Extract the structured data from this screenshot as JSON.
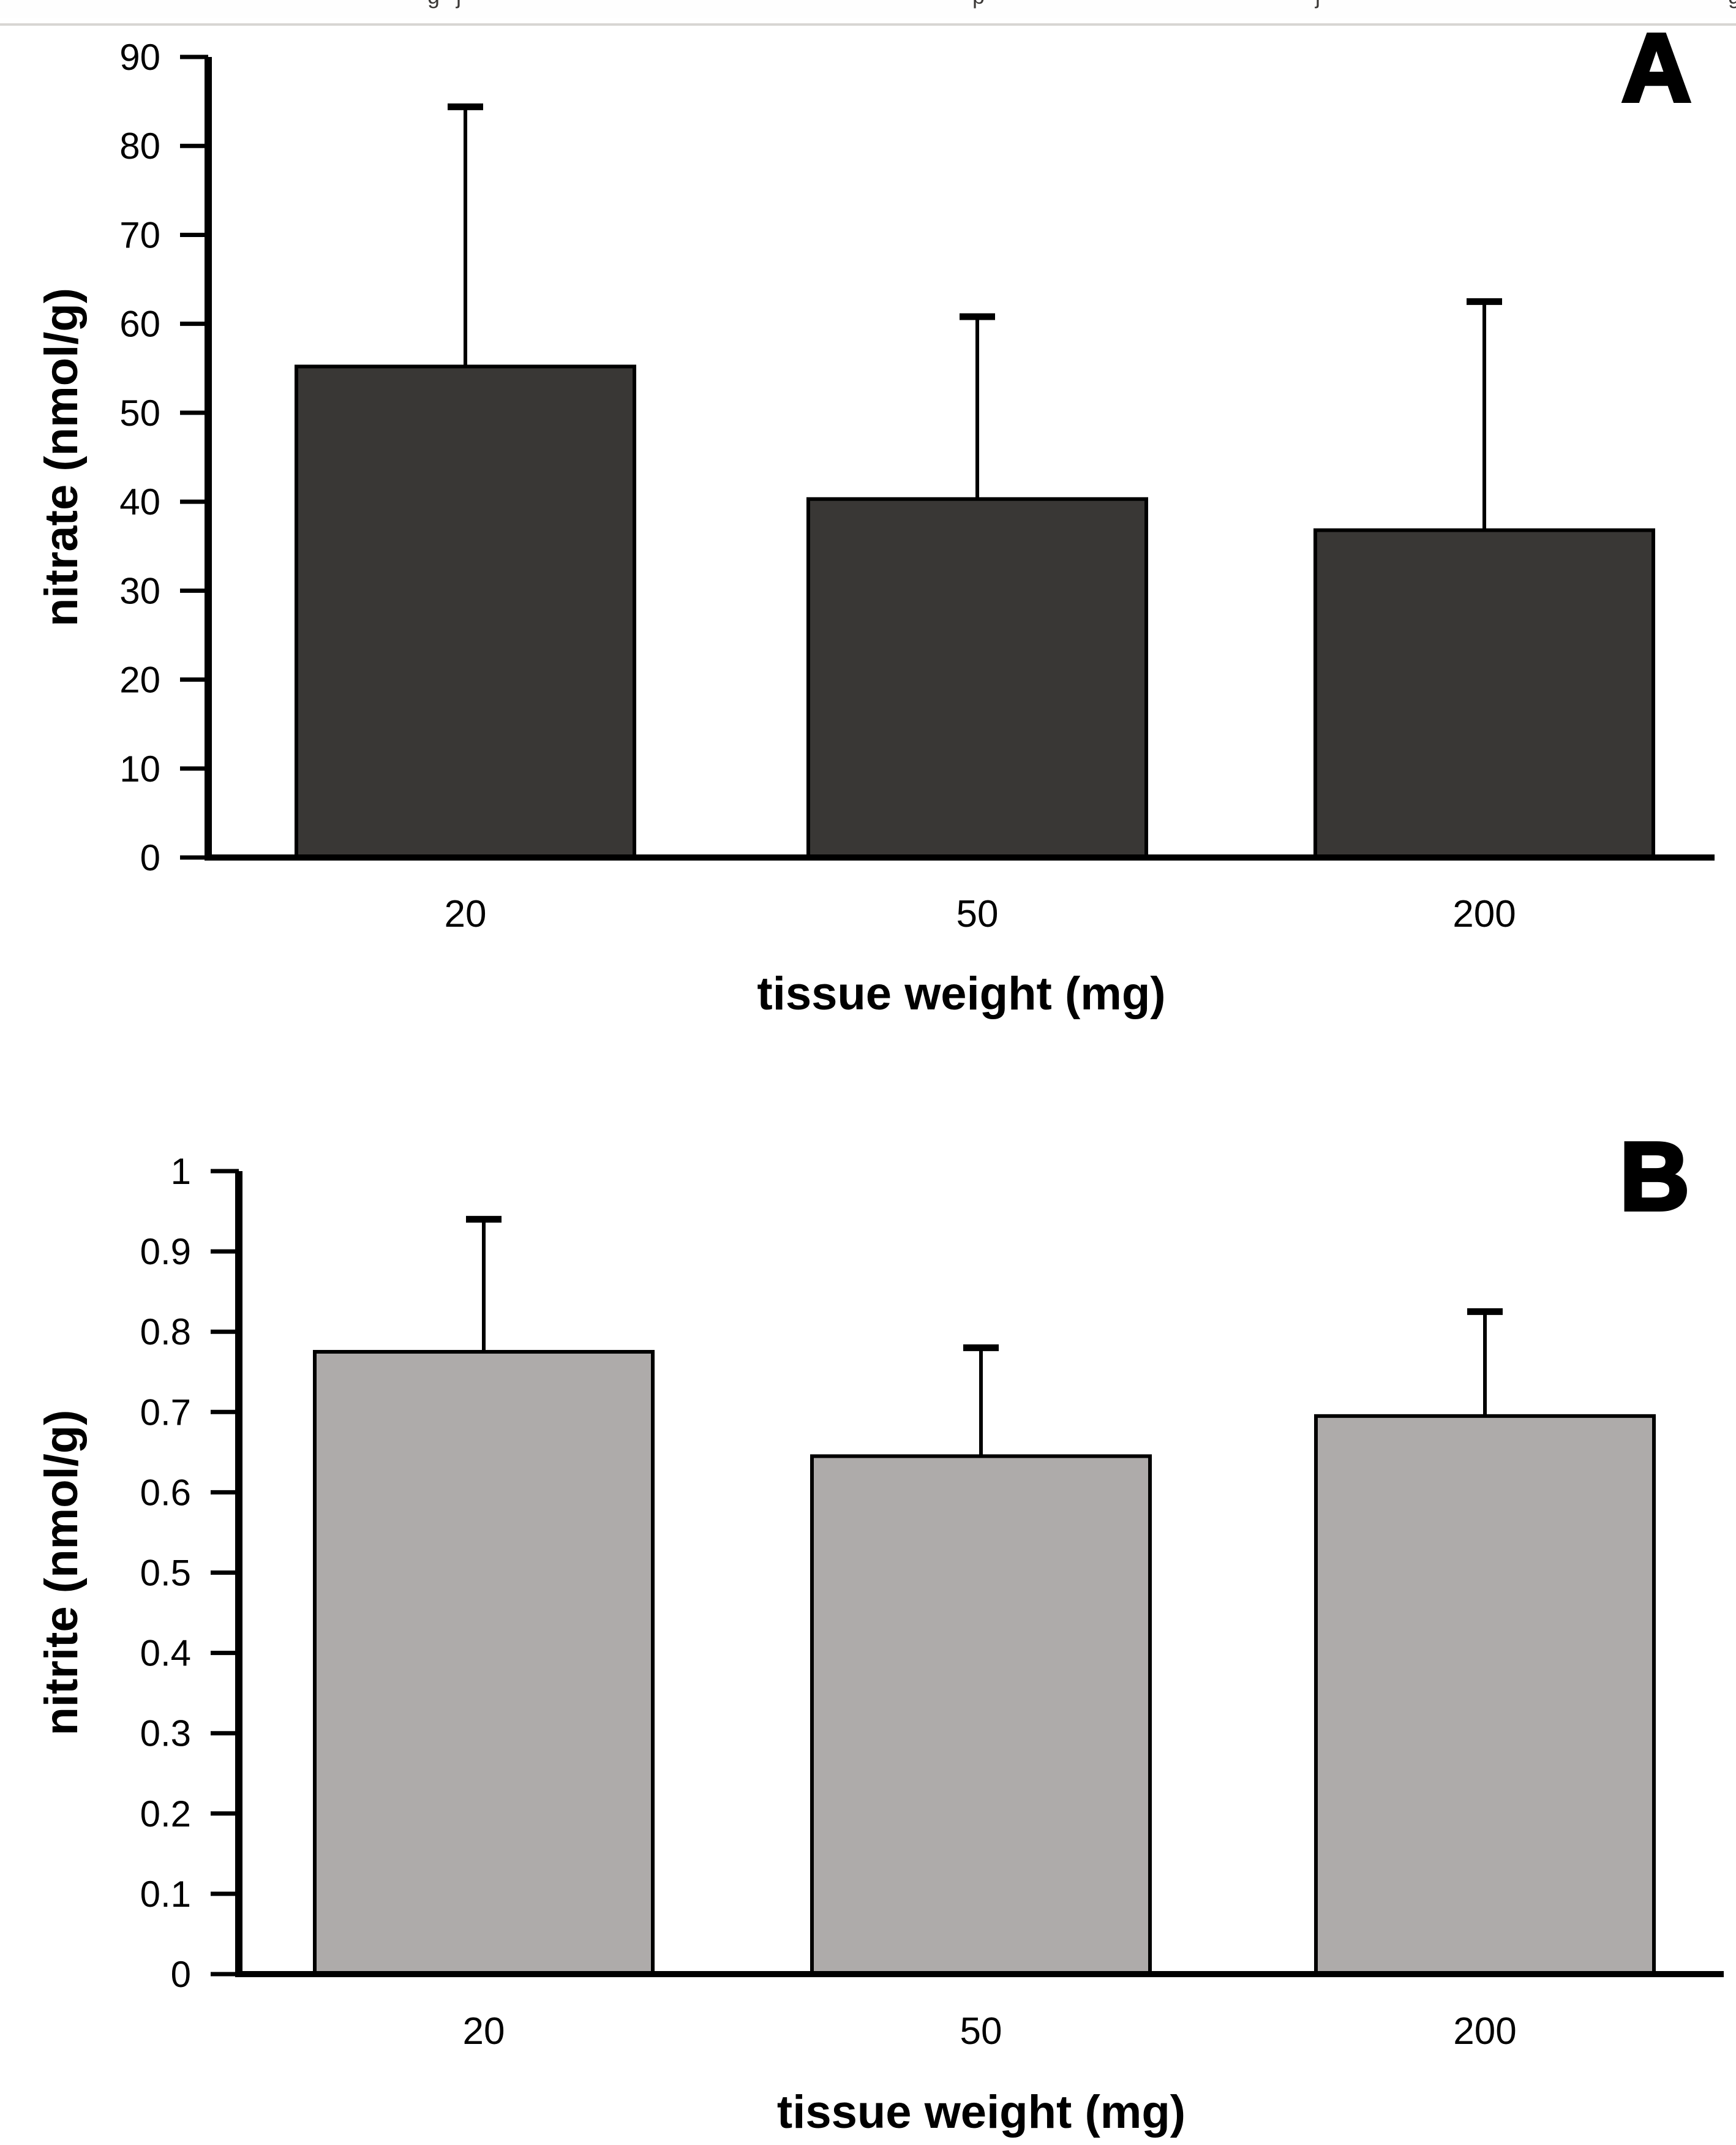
{
  "page": {
    "background": "#ffffff",
    "top_strip": {
      "divider_color": "#d8d6d3",
      "divider_y": 30,
      "divider_height": 4,
      "fragments": [
        {
          "x": 698,
          "char": "g"
        },
        {
          "x": 745,
          "char": "j"
        },
        {
          "x": 1588,
          "char": "p"
        },
        {
          "x": 2148,
          "char": "j"
        },
        {
          "x": 2822,
          "char": "g"
        }
      ]
    }
  },
  "chart_data": [
    {
      "type": "bar",
      "panel_label": "A",
      "categories": [
        "20",
        "50",
        "200"
      ],
      "values": [
        55.2,
        40.3,
        36.8
      ],
      "error_plus": [
        29.2,
        20.5,
        25.7
      ],
      "title": "",
      "xlabel": "tissue weight (mg)",
      "ylabel": "nitrate (nmol/g)",
      "ylim": [
        0,
        90
      ],
      "yticks": [
        "0",
        "10",
        "20",
        "30",
        "40",
        "50",
        "60",
        "70",
        "80",
        "90"
      ],
      "grid": "off",
      "legend": "none",
      "bar_color": "#393735",
      "bar_border_color": "#000000",
      "error_bar_color": "#000000"
    },
    {
      "type": "bar",
      "panel_label": "B",
      "categories": [
        "20",
        "50",
        "200"
      ],
      "values": [
        0.775,
        0.645,
        0.695
      ],
      "error_plus": [
        0.165,
        0.135,
        0.13
      ],
      "title": "",
      "xlabel": "tissue weight (mg)",
      "ylabel": "nitrite (nmol/g)",
      "ylim": [
        0,
        1
      ],
      "yticks": [
        "0",
        "0.1",
        "0.2",
        "0.3",
        "0.4",
        "0.5",
        "0.6",
        "0.7",
        "0.8",
        "0.9",
        "1"
      ],
      "grid": "off",
      "legend": "none",
      "bar_color": "#aeabaa",
      "bar_border_color": "#000000",
      "error_bar_color": "#000000"
    }
  ]
}
